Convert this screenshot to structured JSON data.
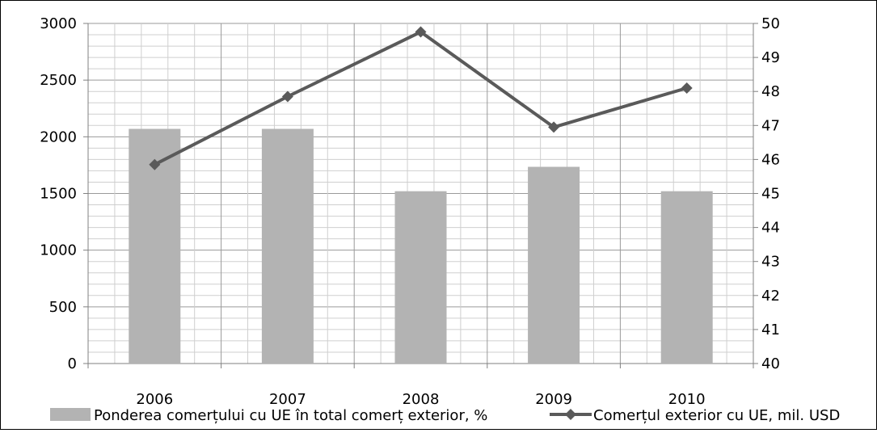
{
  "chart_data": {
    "type": "bar",
    "categories": [
      "2006",
      "2007",
      "2008",
      "2009",
      "2010"
    ],
    "series": [
      {
        "name": "Ponderea comerțului cu UE în total comerț exterior, %",
        "type": "bar",
        "axis": "left",
        "values": [
          2070,
          2070,
          1520,
          1735,
          1520
        ],
        "color": "#b3b3b3"
      },
      {
        "name": "Comerțul exterior  cu UE, mil. USD",
        "type": "line",
        "axis": "right",
        "values": [
          45.85,
          47.85,
          49.75,
          46.95,
          48.1
        ],
        "color": "#5a5a5a",
        "marker": "diamond"
      }
    ],
    "y_left": {
      "min": 0,
      "max": 3000,
      "ticks": [
        "0",
        "500",
        "1000",
        "1500",
        "2000",
        "2500",
        "3000"
      ]
    },
    "y_right": {
      "min": 40,
      "max": 50,
      "ticks": [
        "40",
        "41",
        "42",
        "43",
        "44",
        "45",
        "46",
        "47",
        "48",
        "49",
        "50"
      ]
    },
    "grid": true,
    "legend_position": "bottom",
    "title": "",
    "xlabel": "",
    "ylabel": ""
  }
}
